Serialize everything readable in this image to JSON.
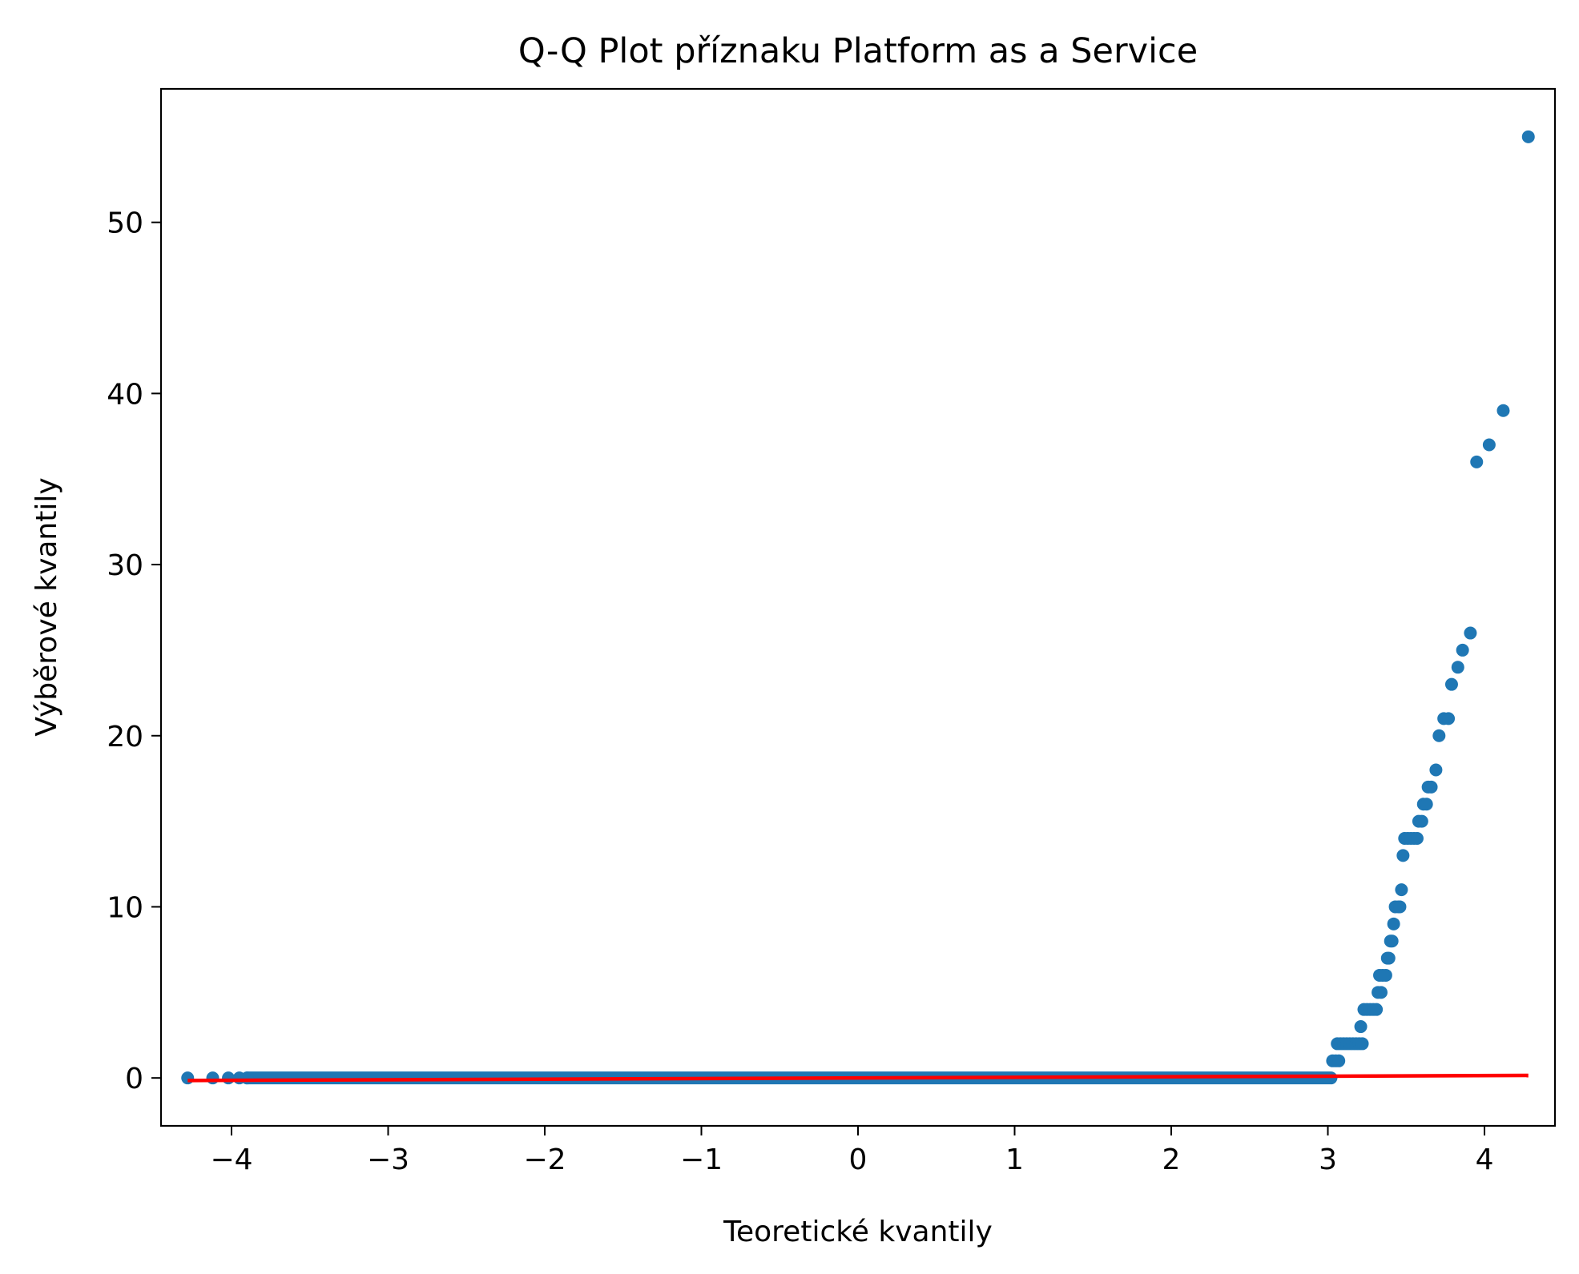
{
  "chart_data": {
    "type": "scatter",
    "title": "Q-Q Plot příznaku Platform as a Service",
    "xlabel": "Teoretické kvantily",
    "ylabel": "Výběrové kvantily",
    "xlim": [
      -4.45,
      4.45
    ],
    "ylim": [
      -2.8,
      57.8
    ],
    "x_ticks": [
      -4,
      -3,
      -2,
      -1,
      0,
      1,
      2,
      3,
      4
    ],
    "x_tick_labels": [
      "−4",
      "−3",
      "−2",
      "−1",
      "0",
      "1",
      "2",
      "3",
      "4"
    ],
    "y_ticks": [
      0,
      10,
      20,
      30,
      40,
      50
    ],
    "y_tick_labels": [
      "0",
      "10",
      "20",
      "30",
      "40",
      "50"
    ],
    "grid": false,
    "colors": {
      "points": "#1f77b4",
      "fit_line": "#ff0000",
      "axes": "#000000"
    },
    "series": [
      {
        "kind": "points",
        "segments": [
          {
            "x_from": -3.9,
            "x_to": 3.02,
            "y": 0,
            "density": "continuous"
          }
        ],
        "points": [
          [
            -4.28,
            0
          ],
          [
            -4.12,
            0
          ],
          [
            -4.02,
            0
          ],
          [
            -3.95,
            0
          ],
          [
            -3.9,
            0
          ],
          [
            3.03,
            1
          ],
          [
            3.05,
            1
          ],
          [
            3.07,
            1
          ],
          [
            3.06,
            2
          ],
          [
            3.08,
            2
          ],
          [
            3.1,
            2
          ],
          [
            3.12,
            2
          ],
          [
            3.14,
            2
          ],
          [
            3.16,
            2
          ],
          [
            3.18,
            2
          ],
          [
            3.2,
            2
          ],
          [
            3.22,
            2
          ],
          [
            3.21,
            3
          ],
          [
            3.23,
            4
          ],
          [
            3.25,
            4
          ],
          [
            3.27,
            4
          ],
          [
            3.29,
            4
          ],
          [
            3.31,
            4
          ],
          [
            3.32,
            5
          ],
          [
            3.34,
            5
          ],
          [
            3.33,
            6
          ],
          [
            3.35,
            6
          ],
          [
            3.37,
            6
          ],
          [
            3.38,
            7
          ],
          [
            3.39,
            7
          ],
          [
            3.4,
            8
          ],
          [
            3.41,
            8
          ],
          [
            3.42,
            9
          ],
          [
            3.43,
            10
          ],
          [
            3.45,
            10
          ],
          [
            3.46,
            10
          ],
          [
            3.47,
            11
          ],
          [
            3.48,
            13
          ],
          [
            3.49,
            14
          ],
          [
            3.51,
            14
          ],
          [
            3.53,
            14
          ],
          [
            3.55,
            14
          ],
          [
            3.57,
            14
          ],
          [
            3.58,
            15
          ],
          [
            3.6,
            15
          ],
          [
            3.61,
            16
          ],
          [
            3.63,
            16
          ],
          [
            3.64,
            17
          ],
          [
            3.66,
            17
          ],
          [
            3.69,
            18
          ],
          [
            3.71,
            20
          ],
          [
            3.74,
            21
          ],
          [
            3.77,
            21
          ],
          [
            3.79,
            23
          ],
          [
            3.83,
            24
          ],
          [
            3.86,
            25
          ],
          [
            3.91,
            26
          ],
          [
            3.95,
            36
          ],
          [
            4.03,
            37
          ],
          [
            4.12,
            39
          ],
          [
            4.28,
            55
          ]
        ]
      },
      {
        "kind": "fit_line",
        "points": [
          [
            -4.28,
            -0.15
          ],
          [
            4.28,
            0.15
          ]
        ]
      }
    ]
  }
}
